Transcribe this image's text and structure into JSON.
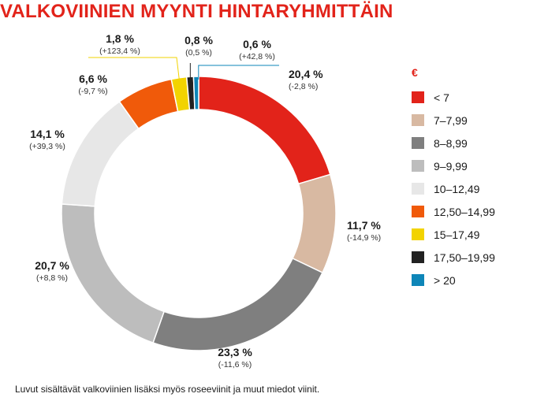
{
  "chart_data": {
    "type": "pie",
    "title": "VALKOVIINIEN MYYNTI HINTARYHMITTÄIN",
    "legend_title": "€",
    "legend_position": "right",
    "slices": [
      {
        "category": "< 7",
        "value": 20.4,
        "value_label": "20,4 %",
        "change_label": "(-2,8 %)",
        "color": "#e2231a"
      },
      {
        "category": "7–7,99",
        "value": 11.7,
        "value_label": "11,7 %",
        "change_label": "(-14,9 %)",
        "color": "#d8b9a2"
      },
      {
        "category": "8–8,99",
        "value": 23.3,
        "value_label": "23,3 %",
        "change_label": "(-11,6 %)",
        "color": "#7f7f7f"
      },
      {
        "category": "9–9,99",
        "value": 20.7,
        "value_label": "20,7 %",
        "change_label": "(+8,8 %)",
        "color": "#bdbdbd"
      },
      {
        "category": "10–12,49",
        "value": 14.1,
        "value_label": "14,1 %",
        "change_label": "(+39,3 %)",
        "color": "#e7e7e7"
      },
      {
        "category": "12,50–14,99",
        "value": 6.6,
        "value_label": "6,6 %",
        "change_label": "(-9,7 %)",
        "color": "#f05a0a"
      },
      {
        "category": "15–17,49",
        "value": 1.8,
        "value_label": "1,8 %",
        "change_label": "(+123,4 %)",
        "color": "#f2d300"
      },
      {
        "category": "17,50–19,99",
        "value": 0.8,
        "value_label": "0,8 %",
        "change_label": "(0,5 %)",
        "color": "#222222"
      },
      {
        "category": "> 20",
        "value": 0.6,
        "value_label": "0,6 %",
        "change_label": "(+42,8 %)",
        "color": "#0e86b8"
      }
    ]
  },
  "footnote": "Luvut sisältävät valkoviinien lisäksi myös roseeviinit ja muut miedot viinit."
}
